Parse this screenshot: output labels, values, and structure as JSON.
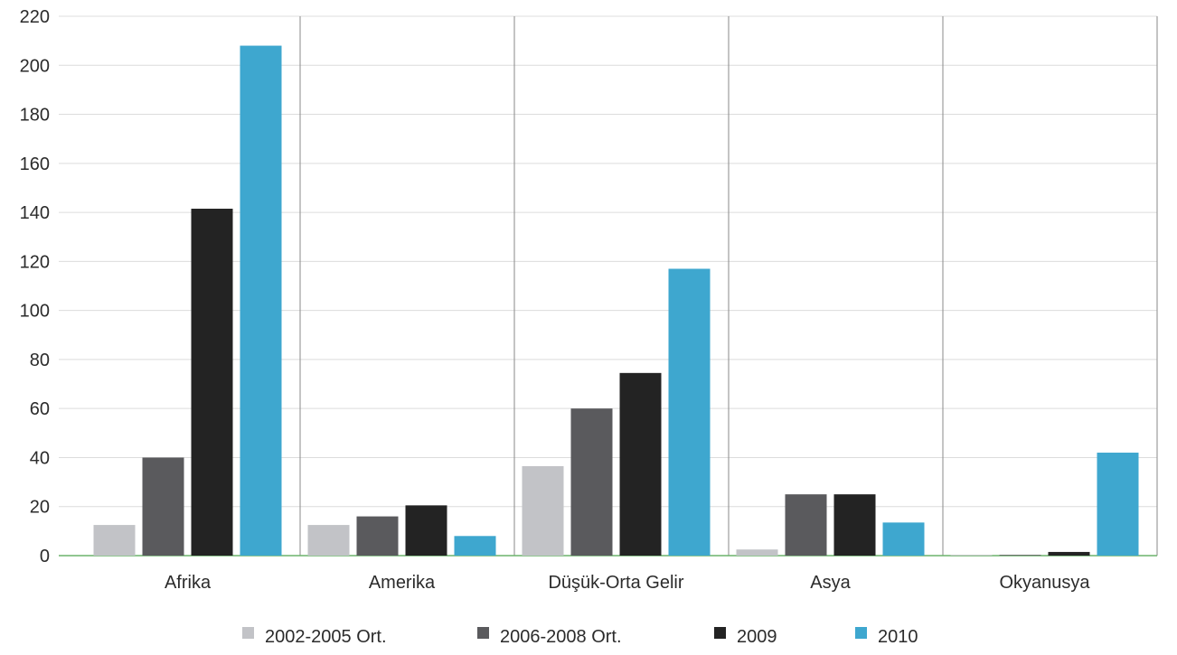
{
  "chart_data": {
    "type": "bar",
    "title": "",
    "xlabel": "",
    "ylabel": "",
    "ylim": [
      0,
      220
    ],
    "yticks": [
      0,
      20,
      40,
      60,
      80,
      100,
      120,
      140,
      160,
      180,
      200,
      220
    ],
    "categories": [
      "Afrika",
      "Amerika",
      "Düşük-Orta Gelir",
      "Asya",
      "Okyanusya"
    ],
    "series": [
      {
        "name": "2002-2005 Ort.",
        "color": "#c2c3c7",
        "values": [
          12.5,
          12.5,
          36.5,
          2.5,
          0.3
        ]
      },
      {
        "name": "2006-2008 Ort.",
        "color": "#5a5a5d",
        "values": [
          40,
          16,
          60,
          25,
          0.3
        ]
      },
      {
        "name": "2009",
        "color": "#232323",
        "values": [
          141.5,
          20.5,
          74.5,
          25,
          1.5
        ]
      },
      {
        "name": "2010",
        "color": "#3ea7cf",
        "values": [
          208,
          8,
          117,
          13.5,
          42
        ]
      }
    ],
    "grid": true,
    "legend_position": "bottom-center"
  }
}
